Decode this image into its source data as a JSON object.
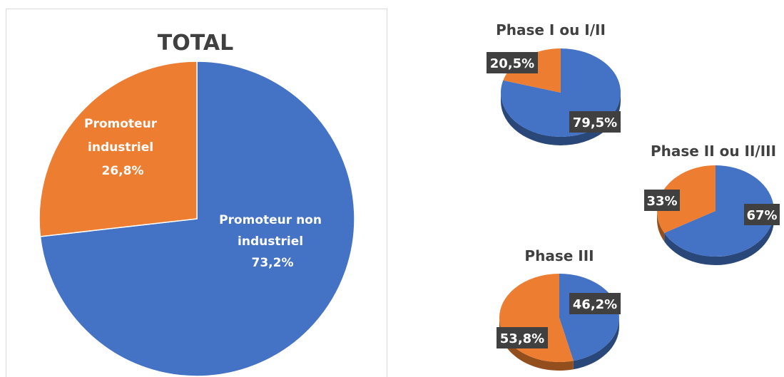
{
  "chart_data": [
    {
      "type": "pie",
      "title": "TOTAL",
      "slices": [
        {
          "label": "Promoteur non industriel",
          "value": 73.2,
          "value_label": "73,2%",
          "color": "#4472C4"
        },
        {
          "label": "Promoteur industriel",
          "value": 26.8,
          "value_label": "26,8%",
          "color": "#ED7D31"
        }
      ]
    },
    {
      "type": "pie",
      "title": "Phase I ou I/II",
      "style": "3d",
      "slices": [
        {
          "value": 79.5,
          "value_label": "79,5%",
          "color": "#4472C4"
        },
        {
          "value": 20.5,
          "value_label": "20,5%",
          "color": "#ED7D31"
        }
      ]
    },
    {
      "type": "pie",
      "title": "Phase II ou II/III",
      "style": "3d",
      "slices": [
        {
          "value": 67,
          "value_label": "67%",
          "color": "#4472C4"
        },
        {
          "value": 33,
          "value_label": "33%",
          "color": "#ED7D31"
        }
      ]
    },
    {
      "type": "pie",
      "title": "Phase III",
      "style": "3d",
      "slices": [
        {
          "value": 46.2,
          "value_label": "46,2%",
          "color": "#4472C4"
        },
        {
          "value": 53.8,
          "value_label": "53,8%",
          "color": "#ED7D31"
        }
      ]
    }
  ]
}
